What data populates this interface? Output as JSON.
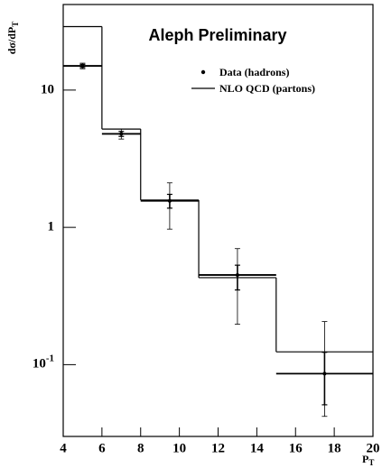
{
  "chart_data": {
    "type": "step_errorbar",
    "title": "Aleph Preliminary",
    "y_label": "dσ/dP",
    "y_label_sub": "T",
    "x_label": "P",
    "x_label_sub": "T",
    "xlim": [
      4,
      20
    ],
    "xticks": [
      4,
      6,
      8,
      10,
      12,
      14,
      16,
      18,
      20
    ],
    "ylim": [
      0.03,
      42
    ],
    "log_y": true,
    "yticks": [
      {
        "value": 0.1,
        "label": "10",
        "sup": "-1"
      },
      1,
      10
    ],
    "series": [
      {
        "name": "Data (hadrons)",
        "color": "#000000",
        "x": [
          5,
          7,
          9.5,
          13,
          17.5
        ],
        "x_low": [
          4,
          6,
          8,
          11,
          15
        ],
        "x_high": [
          6,
          8,
          11,
          15,
          20
        ],
        "values": [
          15,
          4.8,
          1.56,
          0.45,
          0.086
        ],
        "err_outer_low": [
          14.3,
          4.4,
          0.97,
          0.197,
          0.042
        ],
        "err_outer_high": [
          15.7,
          5.2,
          2.11,
          0.7,
          0.206
        ],
        "err_inner_low": [
          14.6,
          4.6,
          1.38,
          0.35,
          0.051
        ],
        "err_inner_high": [
          15.4,
          5.0,
          1.74,
          0.53,
          0.123
        ]
      },
      {
        "name": "NLO QCD (partons)",
        "color": "#000000",
        "bins": [
          4,
          6,
          8,
          11,
          15,
          20
        ],
        "values": [
          29,
          5.2,
          1.58,
          0.43,
          0.124
        ]
      }
    ]
  }
}
